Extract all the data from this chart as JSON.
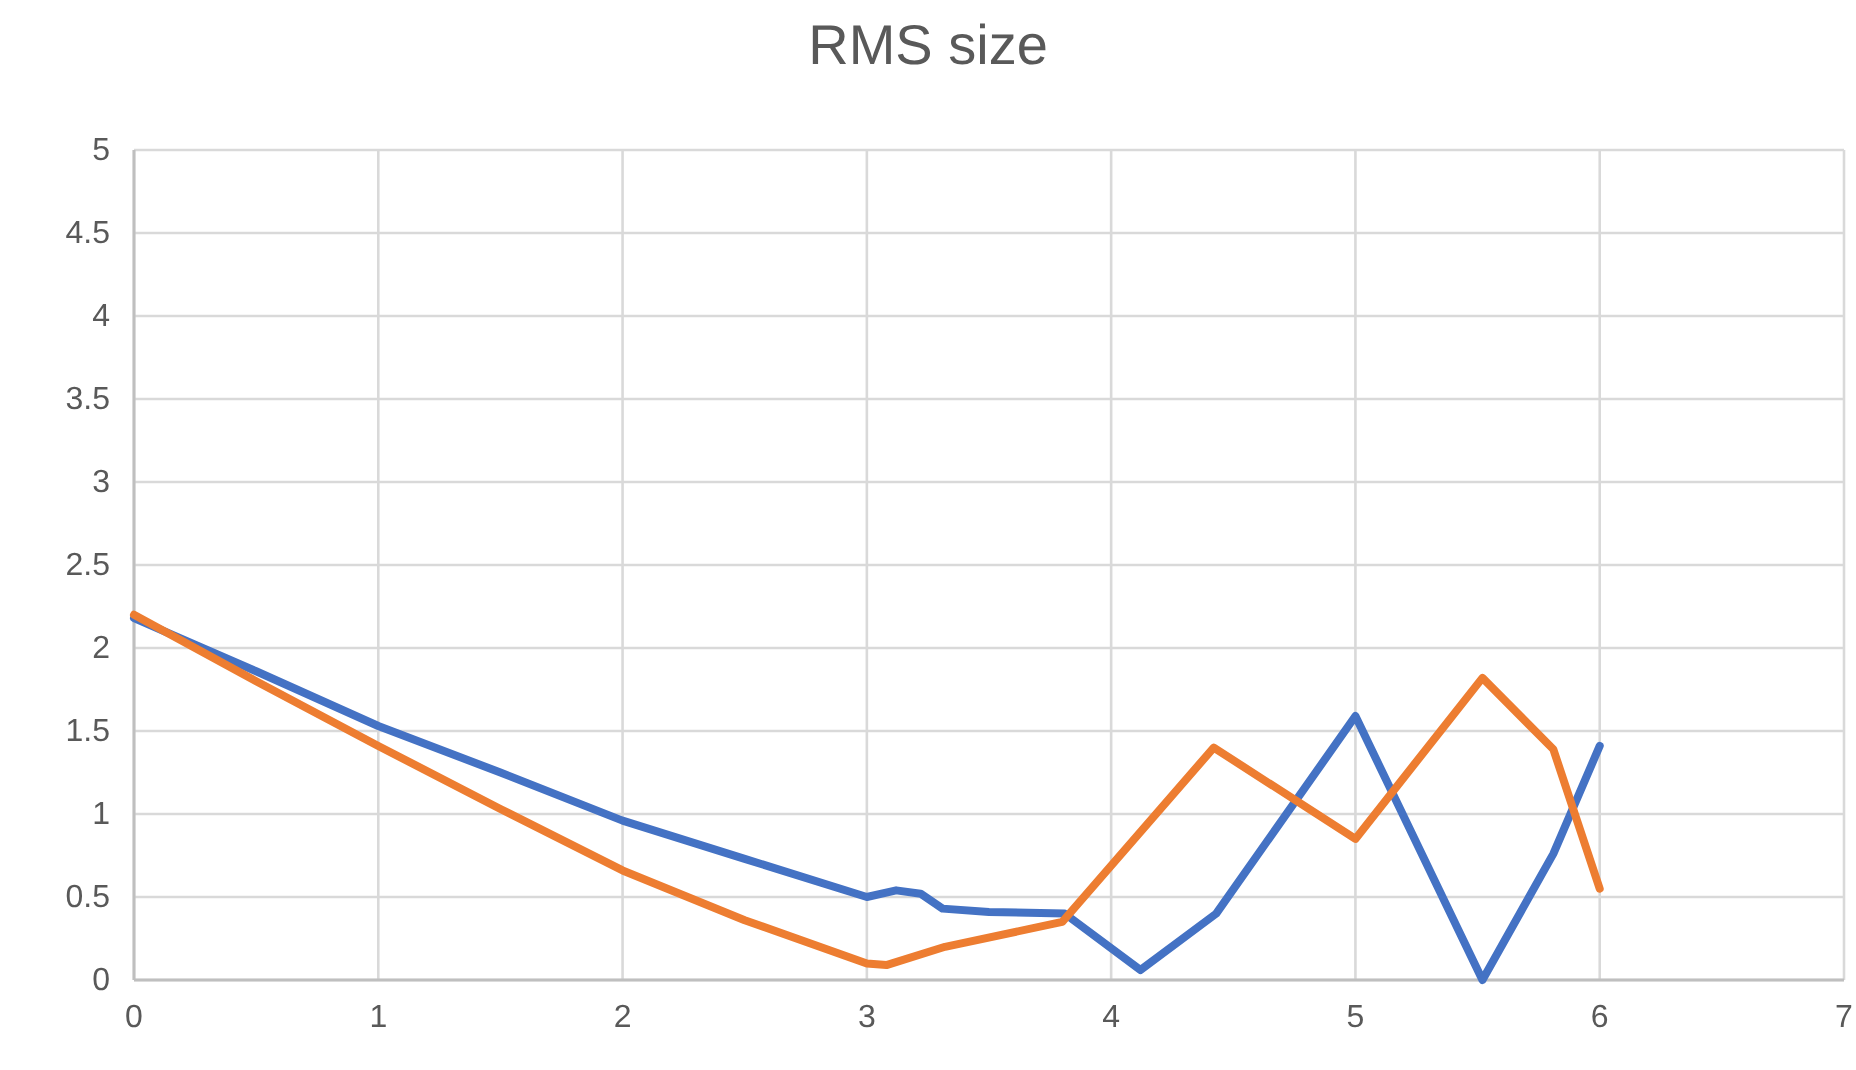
{
  "chart_data": {
    "type": "line",
    "title": "RMS size",
    "xlim": [
      0,
      7
    ],
    "xticks": [
      0,
      1,
      2,
      3,
      4,
      5,
      6,
      7
    ],
    "ylim": [
      0,
      5
    ],
    "yticks": [
      0,
      0.5,
      1,
      1.5,
      2,
      2.5,
      3,
      3.5,
      4,
      4.5,
      5
    ],
    "grid": true,
    "marker": "none",
    "line_style": "solid",
    "series": [
      {
        "color": "#4472c4",
        "x": [
          0,
          0.5,
          1,
          1.5,
          2,
          2.5,
          3,
          3.12,
          3.22,
          3.31,
          3.5,
          3.81,
          4.12,
          4.43,
          5,
          5.52,
          5.81,
          6
        ],
        "values": [
          2.18,
          1.86,
          1.53,
          1.25,
          0.96,
          0.73,
          0.5,
          0.54,
          0.52,
          0.43,
          0.41,
          0.4,
          0.06,
          0.4,
          1.59,
          0,
          0.76,
          1.41
        ]
      },
      {
        "color": "#ed7d31",
        "x": [
          0,
          0.5,
          1,
          1.5,
          2,
          2.5,
          3,
          3.08,
          3.32,
          3.8,
          4.42,
          5,
          5.52,
          5.81,
          6
        ],
        "values": [
          2.2,
          1.8,
          1.41,
          1.03,
          0.66,
          0.36,
          0.1,
          0.09,
          0.2,
          0.35,
          1.4,
          0.85,
          1.82,
          1.39,
          0.55
        ]
      }
    ]
  }
}
